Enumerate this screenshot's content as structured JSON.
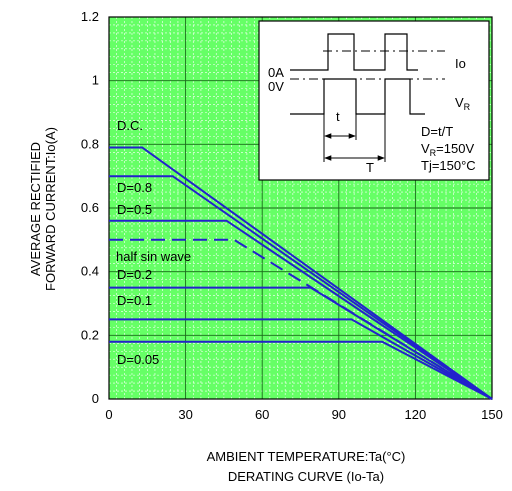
{
  "chart_data": {
    "type": "line",
    "title": "DERATING  CURVE (Io-Ta)",
    "xlabel": "AMBIENT TEMPERATURE:Ta(°C)",
    "ylabel_lines": [
      "AVERAGE RECTIFIED",
      "FORWARD CURRENT:Io(A)"
    ],
    "xlim": [
      0,
      150
    ],
    "ylim": [
      0,
      1.2
    ],
    "x_ticks": [
      "0",
      "30",
      "60",
      "90",
      "120",
      "150"
    ],
    "y_ticks": [
      "0",
      "0.2",
      "0.4",
      "0.6",
      "0.8",
      "1",
      "1.2"
    ],
    "grid": true,
    "plot_bg": "#66ff66",
    "line_color": "#2222cc",
    "series": [
      {
        "name": "D.C.",
        "dashed": false,
        "x": [
          0,
          13,
          150
        ],
        "y": [
          0.79,
          0.79,
          0
        ]
      },
      {
        "name": "D=0.8",
        "dashed": false,
        "x": [
          0,
          25,
          150
        ],
        "y": [
          0.7,
          0.7,
          0
        ]
      },
      {
        "name": "D=0.5",
        "dashed": false,
        "x": [
          0,
          46,
          150
        ],
        "y": [
          0.56,
          0.56,
          0
        ]
      },
      {
        "name": "half sin wave",
        "dashed": true,
        "x": [
          0,
          49,
          150
        ],
        "y": [
          0.5,
          0.5,
          0
        ]
      },
      {
        "name": "D=0.2",
        "dashed": false,
        "x": [
          0,
          79,
          150
        ],
        "y": [
          0.35,
          0.35,
          0
        ]
      },
      {
        "name": "D=0.1",
        "dashed": false,
        "x": [
          0,
          95,
          150
        ],
        "y": [
          0.25,
          0.25,
          0
        ]
      },
      {
        "name": "D=0.05",
        "dashed": false,
        "x": [
          0,
          107,
          150
        ],
        "y": [
          0.18,
          0.18,
          0
        ]
      }
    ],
    "inset": {
      "io": "Io",
      "zero_a": "0A",
      "zero_v": "0V",
      "vr": "V",
      "vr_sub": "R",
      "t_small": "t",
      "t_big": "T",
      "duty": "D=t/T",
      "vr_label": "V",
      "vr_label_sub": "R",
      "vr_value": "=150V",
      "tj": "Tj=150°C"
    }
  }
}
